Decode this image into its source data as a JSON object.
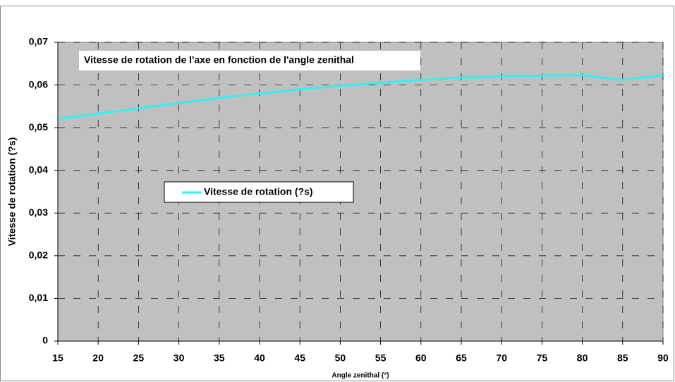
{
  "chart_data": {
    "type": "line",
    "title": "Vitesse de rotation de l'axe en fonction de l'angle zenithal",
    "xlabel": "Angle zenithal (°)",
    "ylabel": "Vitesse de rotation (?s)",
    "x": [
      15,
      20,
      25,
      30,
      35,
      40,
      45,
      50,
      55,
      60,
      65,
      70,
      75,
      80,
      85,
      90
    ],
    "series": [
      {
        "name": "Vitesse de rotation (?s)",
        "color": "#33f0f0",
        "values": [
          0.0521,
          0.0533,
          0.0545,
          0.0558,
          0.057,
          0.058,
          0.059,
          0.0598,
          0.0605,
          0.0612,
          0.0617,
          0.062,
          0.0622,
          0.0623,
          0.0612,
          0.0623
        ]
      }
    ],
    "xlim": [
      15,
      90
    ],
    "xticks": [
      15,
      20,
      25,
      30,
      35,
      40,
      45,
      50,
      55,
      60,
      65,
      70,
      75,
      80,
      85,
      90
    ],
    "ylim": [
      0,
      0.07
    ],
    "yticks": [
      0,
      {
        "value": 0.01,
        "label": "0,01"
      },
      {
        "value": 0.02,
        "label": "0,02"
      },
      {
        "value": 0.03,
        "label": "0,03"
      },
      {
        "value": 0.04,
        "label": "0,04"
      },
      {
        "value": 0.05,
        "label": "0,05"
      },
      {
        "value": 0.06,
        "label": "0,06"
      },
      {
        "value": 0.07,
        "label": "0,07"
      }
    ],
    "grid": true
  }
}
